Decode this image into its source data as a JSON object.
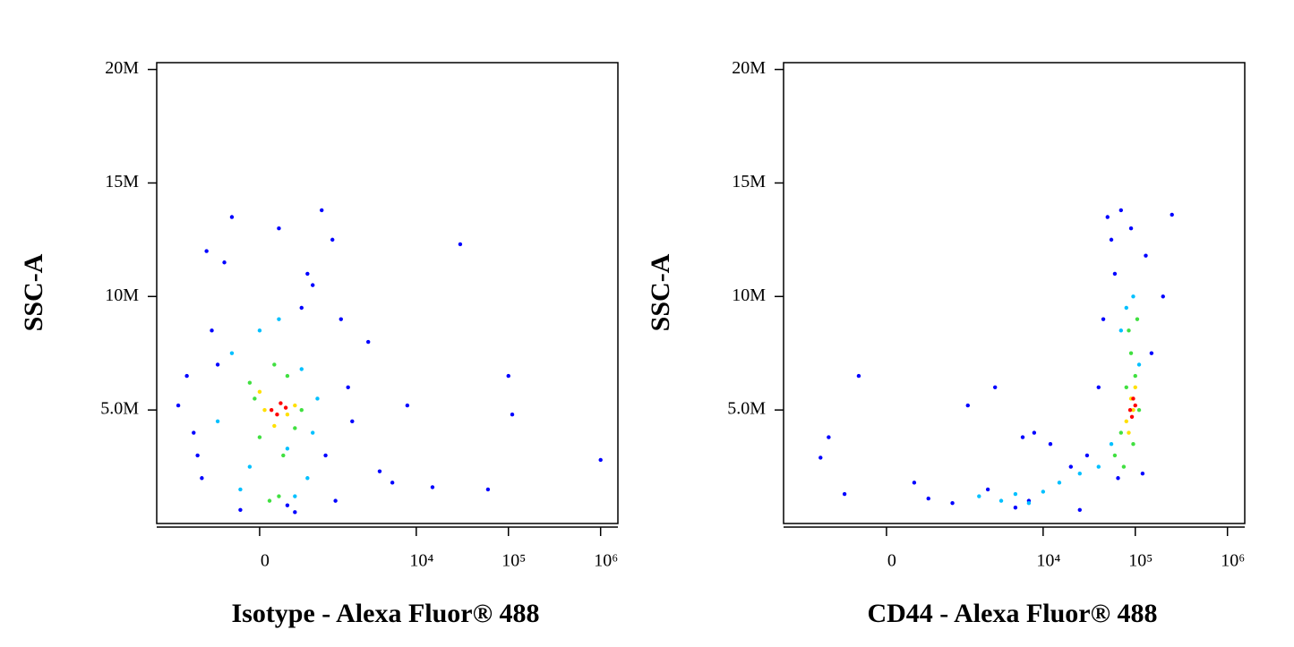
{
  "chart_data": [
    {
      "type": "scatter",
      "x_label": "Isotype - Alexa Fluor® 488",
      "y_label": "SSC-A",
      "xscale": "biexponential",
      "xlim": [
        -2600,
        1540000
      ],
      "ylim": [
        0,
        20300000
      ],
      "xticks": [
        0,
        {
          "value": 10000,
          "label": "10⁴"
        },
        {
          "value": 100000,
          "label": "10⁵"
        },
        {
          "value": 1000000,
          "label": "10⁶"
        }
      ],
      "yticks": [
        {
          "value": 5000000,
          "label": "5.0M"
        },
        {
          "value": 10000000,
          "label": "10M"
        },
        {
          "value": 15000000,
          "label": "15M"
        },
        {
          "value": 20000000,
          "label": "20M"
        }
      ],
      "series": [
        {
          "color": "#0000ff",
          "x": [
            -1500,
            -900,
            -600,
            -1200,
            -400,
            -800,
            -300,
            1500,
            1800,
            1200,
            900,
            2000,
            700,
            -200,
            300,
            600,
            -700,
            1000,
            4000,
            5500,
            8000,
            30000,
            60000,
            100000,
            110000,
            1000000,
            15000,
            3000,
            -1000,
            200,
            500,
            -500,
            1300,
            400
          ],
          "y": [
            5200000,
            3000000,
            8500000,
            6500000,
            11500000,
            2000000,
            13500000,
            9000000,
            6000000,
            12500000,
            13800000,
            4500000,
            10500000,
            600000,
            800000,
            11000000,
            12000000,
            3000000,
            2300000,
            1800000,
            5200000,
            12300000,
            1500000,
            6500000,
            4800000,
            2800000,
            1600000,
            8000000,
            4000000,
            13000000,
            9500000,
            7000000,
            1000000,
            500000
          ]
        },
        {
          "color": "#00c0ff",
          "x": [
            -300,
            500,
            700,
            -500,
            200,
            -100,
            600,
            400,
            -200,
            800,
            0,
            300
          ],
          "y": [
            7500000,
            6800000,
            4000000,
            4500000,
            9000000,
            2500000,
            2000000,
            1200000,
            1500000,
            5500000,
            8500000,
            3300000
          ]
        },
        {
          "color": "#40e040",
          "x": [
            -100,
            300,
            400,
            0,
            200,
            500,
            100,
            -50,
            150,
            250
          ],
          "y": [
            6200000,
            6500000,
            4200000,
            3800000,
            1200000,
            5000000,
            1000000,
            5500000,
            7000000,
            3000000
          ]
        },
        {
          "color": "#ffe000",
          "x": [
            0,
            300,
            150,
            400,
            50
          ],
          "y": [
            5800000,
            4800000,
            4300000,
            5200000,
            5000000
          ]
        },
        {
          "color": "#ff0000",
          "x": [
            120,
            220,
            180,
            280
          ],
          "y": [
            5000000,
            5300000,
            4800000,
            5100000
          ]
        }
      ]
    },
    {
      "type": "scatter",
      "x_label": "CD44 - Alexa Fluor® 488",
      "y_label": "SSC-A",
      "xscale": "biexponential",
      "xlim": [
        -2600,
        1540000
      ],
      "ylim": [
        0,
        20300000
      ],
      "xticks": [
        0,
        {
          "value": 10000,
          "label": "10⁴"
        },
        {
          "value": 100000,
          "label": "10⁵"
        },
        {
          "value": 1000000,
          "label": "10⁶"
        }
      ],
      "yticks": [
        {
          "value": 5000000,
          "label": "5.0M"
        },
        {
          "value": 10000000,
          "label": "10M"
        },
        {
          "value": 15000000,
          "label": "15M"
        },
        {
          "value": 20000000,
          "label": "20M"
        }
      ],
      "series": [
        {
          "color": "#0000ff",
          "x": [
            -800,
            -300,
            500,
            1500,
            3000,
            5000,
            8000,
            12000,
            20000,
            30000,
            40000,
            50000,
            60000,
            70000,
            150000,
            200000,
            250000,
            -500,
            300,
            2500,
            7000,
            25000,
            45000,
            55000,
            65000,
            90000,
            120000,
            130000,
            1000,
            6000,
            -1000
          ],
          "y": [
            3800000,
            6500000,
            1100000,
            5200000,
            6000000,
            700000,
            4000000,
            3500000,
            2500000,
            3000000,
            6000000,
            13500000,
            11000000,
            13800000,
            7500000,
            10000000,
            13600000,
            1300000,
            1800000,
            1500000,
            1000000,
            600000,
            9000000,
            12500000,
            2000000,
            13000000,
            2200000,
            11800000,
            900000,
            3800000,
            2900000
          ]
        },
        {
          "color": "#00c0ff",
          "x": [
            2000,
            3500,
            5000,
            7000,
            10000,
            15000,
            25000,
            40000,
            55000,
            70000,
            80000,
            110000,
            95000
          ],
          "y": [
            1200000,
            1000000,
            1300000,
            900000,
            1400000,
            1800000,
            2200000,
            2500000,
            3500000,
            8500000,
            9500000,
            7000000,
            10000000
          ]
        },
        {
          "color": "#40e040",
          "x": [
            60000,
            70000,
            80000,
            90000,
            100000,
            110000,
            75000,
            85000,
            95000,
            105000
          ],
          "y": [
            3000000,
            4000000,
            6000000,
            7500000,
            6500000,
            5000000,
            2500000,
            8500000,
            3500000,
            9000000
          ]
        },
        {
          "color": "#ffe000",
          "x": [
            80000,
            90000,
            100000,
            85000,
            95000
          ],
          "y": [
            4500000,
            5500000,
            6000000,
            4000000,
            5000000
          ]
        },
        {
          "color": "#ff0000",
          "x": [
            88000,
            95000,
            92000,
            100000
          ],
          "y": [
            5000000,
            5500000,
            4700000,
            5200000
          ]
        }
      ]
    }
  ]
}
